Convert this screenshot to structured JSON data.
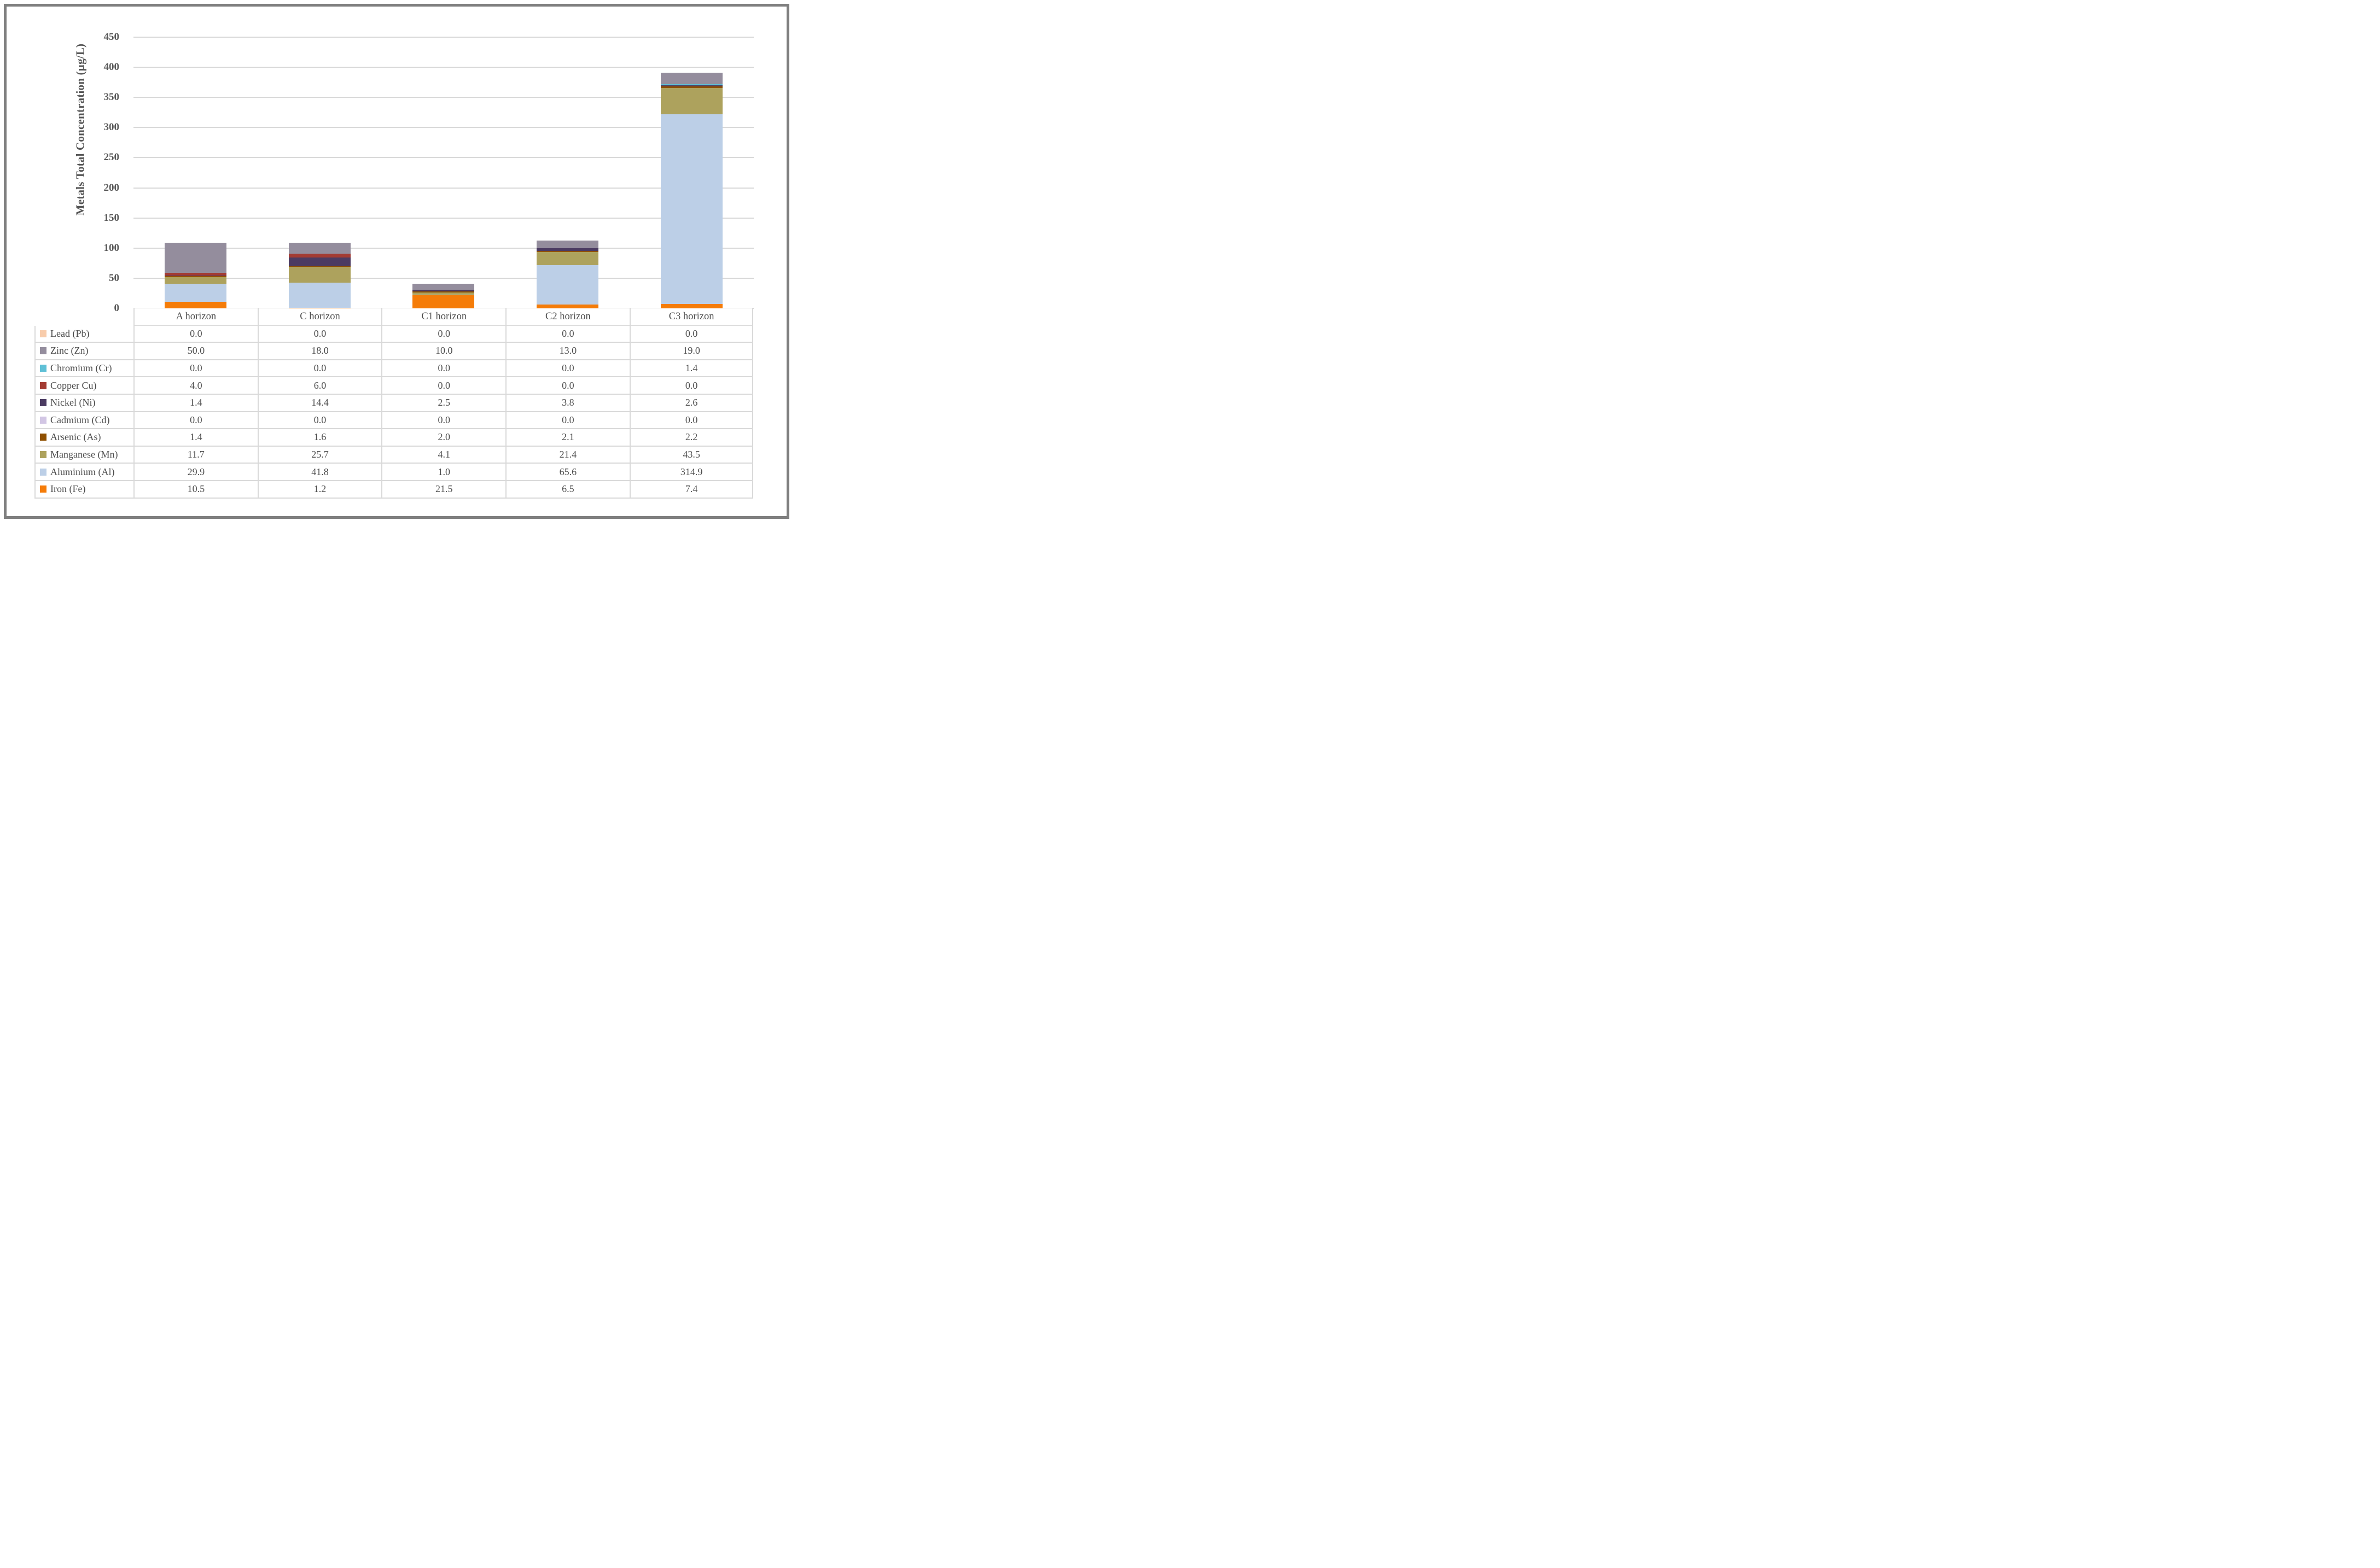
{
  "y_axis": {
    "title": "Metals Total Concentration (µg/L)",
    "ticks": [
      "450",
      "400",
      "350",
      "300",
      "250",
      "200",
      "150",
      "100",
      "50",
      "0"
    ],
    "ylim": [
      0,
      450
    ],
    "gridline_color": "#d9d9d9",
    "grid": true
  },
  "chart_data": {
    "type": "bar",
    "stacked": true,
    "title": "",
    "xlabel": "",
    "ylabel": "Metals Total Concentration (µg/L)",
    "ylim": [
      0,
      450
    ],
    "legend_position": "table-left",
    "value_decimals": 1,
    "categories": [
      "A horizon",
      "C horizon",
      "C1 horizon",
      "C2 horizon",
      "C3 horizon"
    ],
    "series": [
      {
        "name": "Lead (Pb)",
        "color": "#f8ccab",
        "values": [
          0.0,
          0.0,
          0.0,
          0.0,
          0.0
        ]
      },
      {
        "name": "Zinc (Zn)",
        "color": "#948d9d",
        "values": [
          50.0,
          18.0,
          10.0,
          13.0,
          19.0
        ]
      },
      {
        "name": "Chromium (Cr)",
        "color": "#5fc0d6",
        "values": [
          0.0,
          0.0,
          0.0,
          0.0,
          1.4
        ]
      },
      {
        "name": "Copper Cu)",
        "color": "#a33b33",
        "values": [
          4.0,
          6.0,
          0.0,
          0.0,
          0.0
        ]
      },
      {
        "name": "Nickel (Ni)",
        "color": "#4b3b62",
        "values": [
          1.4,
          14.4,
          2.5,
          3.8,
          2.6
        ]
      },
      {
        "name": "Cadmium (Cd)",
        "color": "#d2c6e4",
        "values": [
          0.0,
          0.0,
          0.0,
          0.0,
          0.0
        ]
      },
      {
        "name": "Arsenic (As)",
        "color": "#8f5000",
        "values": [
          1.4,
          1.6,
          2.0,
          2.1,
          2.2
        ]
      },
      {
        "name": "Manganese (Mn)",
        "color": "#ada25d",
        "values": [
          11.7,
          25.7,
          4.1,
          21.4,
          43.5
        ]
      },
      {
        "name": "Aluminium (Al)",
        "color": "#bccfe7",
        "values": [
          29.9,
          41.8,
          1.0,
          65.6,
          314.9
        ]
      },
      {
        "name": "Iron (Fe)",
        "color": "#f57c08",
        "values": [
          10.5,
          1.2,
          21.5,
          6.5,
          7.4
        ]
      }
    ],
    "stack_order_bottom_to_top": [
      "Iron (Fe)",
      "Aluminium (Al)",
      "Manganese (Mn)",
      "Arsenic (As)",
      "Cadmium (Cd)",
      "Nickel (Ni)",
      "Copper Cu)",
      "Chromium (Cr)",
      "Zinc (Zn)",
      "Lead (Pb)"
    ]
  },
  "frame": {
    "border_color": "#7f7f7f"
  }
}
